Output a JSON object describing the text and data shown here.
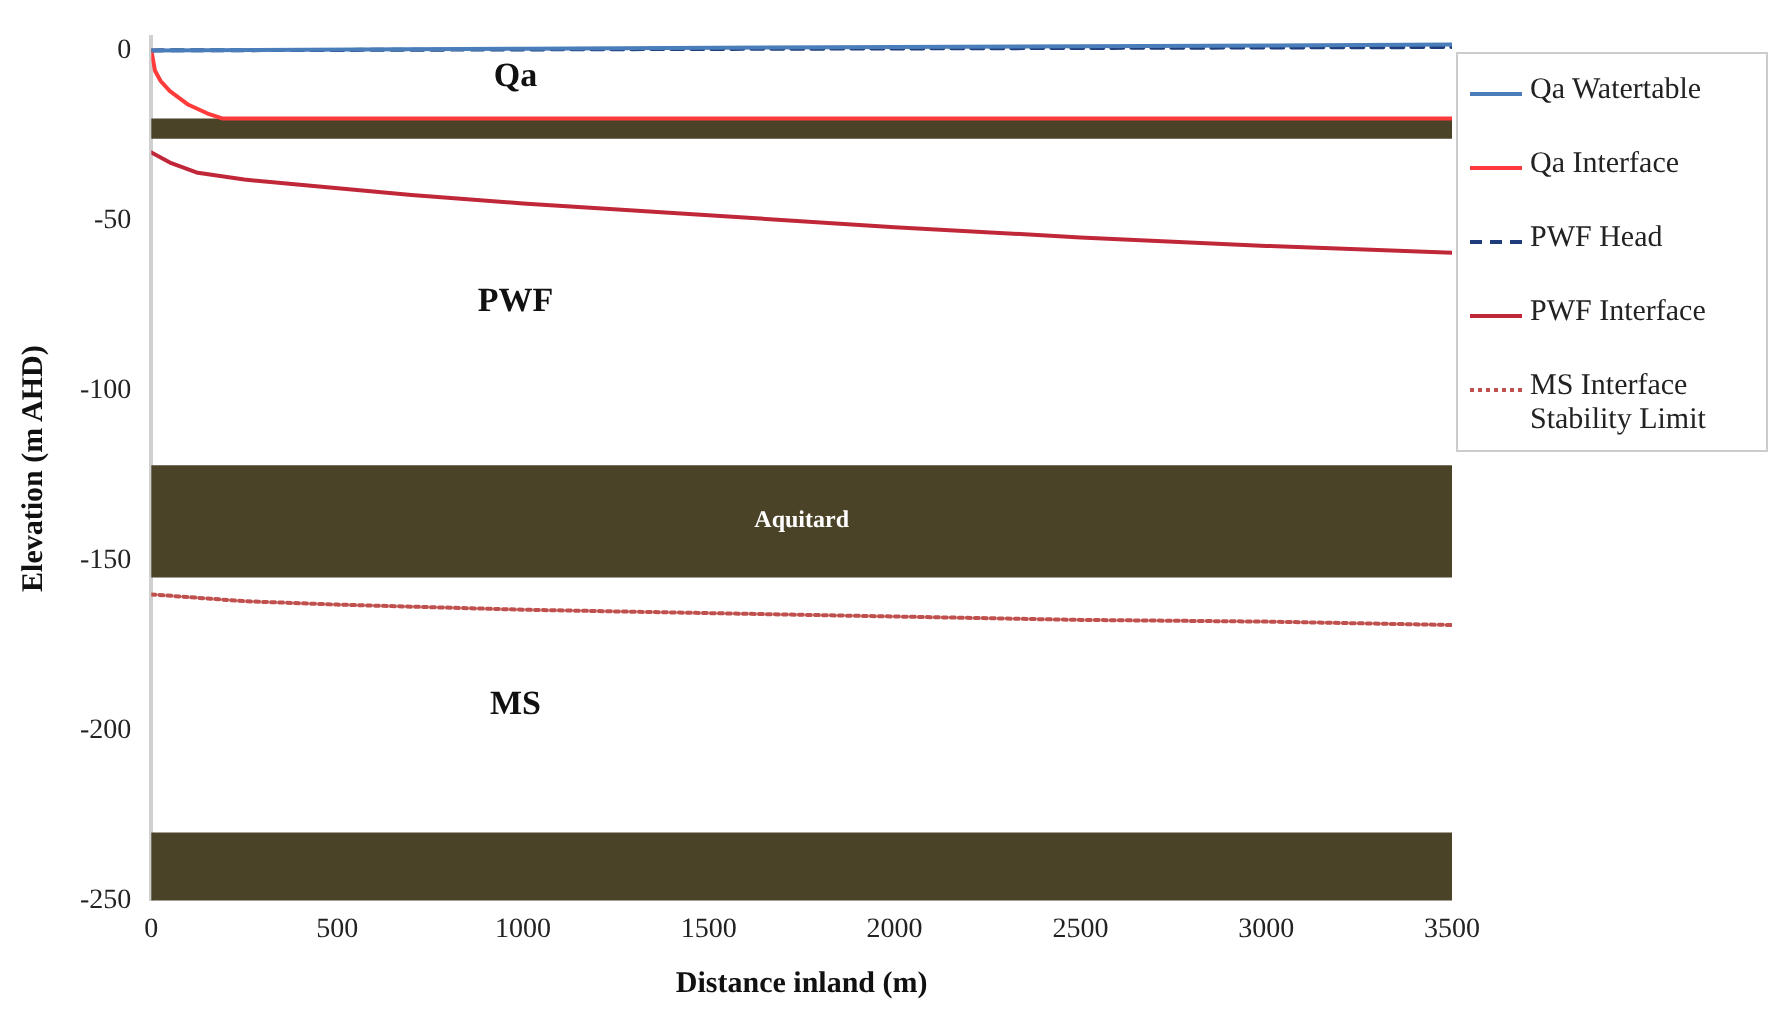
{
  "chart_data": {
    "type": "line",
    "xlabel": "Distance inland (m)",
    "ylabel": "Elevation (m AHD)",
    "xlim": [
      0,
      3500
    ],
    "xticks": [
      0,
      500,
      1000,
      1500,
      2000,
      2500,
      3000,
      3500
    ],
    "ylim": [
      -250,
      4
    ],
    "yticks": [
      -250,
      -200,
      -150,
      -100,
      -50,
      0
    ],
    "grid": false,
    "legend": "right",
    "marker": "none",
    "series": [
      {
        "name": "Qa Watertable",
        "color": "#4a7ebb",
        "line_style": "solid",
        "x": [
          0,
          1000,
          2000,
          3500
        ],
        "values": [
          0,
          0.5,
          1,
          1.7
        ]
      },
      {
        "name": "Qa Interface",
        "color": "#ff3b3b",
        "line_style": "solid",
        "x": [
          0,
          10,
          25,
          50,
          100,
          150,
          190,
          3500
        ],
        "values": [
          0,
          -6,
          -9,
          -12,
          -16,
          -18.5,
          -20,
          -20
        ]
      },
      {
        "name": "PWF Head",
        "color": "#1f3d7a",
        "line_style": "dashed",
        "x": [
          0,
          3500
        ],
        "values": [
          0,
          1
        ]
      },
      {
        "name": "PWF Interface",
        "color": "#c0283a",
        "line_style": "solid",
        "x": [
          0,
          50,
          125,
          250,
          400,
          700,
          1000,
          1500,
          2000,
          2500,
          3000,
          3500
        ],
        "values": [
          -30,
          -33,
          -36,
          -38,
          -39.5,
          -42.5,
          -45,
          -48.5,
          -52,
          -55,
          -57.5,
          -59.5
        ]
      },
      {
        "name": "MS Interface Stability Limit",
        "color": "#c0504d",
        "line_style": "dotted",
        "x": [
          0,
          250,
          500,
          1000,
          1500,
          2000,
          2500,
          3000,
          3500
        ],
        "values": [
          -160,
          -162,
          -163,
          -164.5,
          -165.5,
          -166.5,
          -167.5,
          -168,
          -169
        ]
      }
    ],
    "bands": [
      {
        "axis": "y",
        "from": -26,
        "to": -20,
        "color": "#4b4328"
      },
      {
        "axis": "y",
        "from": -155,
        "to": -122,
        "color": "#4b4328",
        "label": "Aquitard"
      },
      {
        "axis": "y",
        "from": -250,
        "to": -230,
        "color": "#4b4328"
      }
    ],
    "annotations": [
      "Qa",
      "PWF",
      "MS"
    ]
  }
}
